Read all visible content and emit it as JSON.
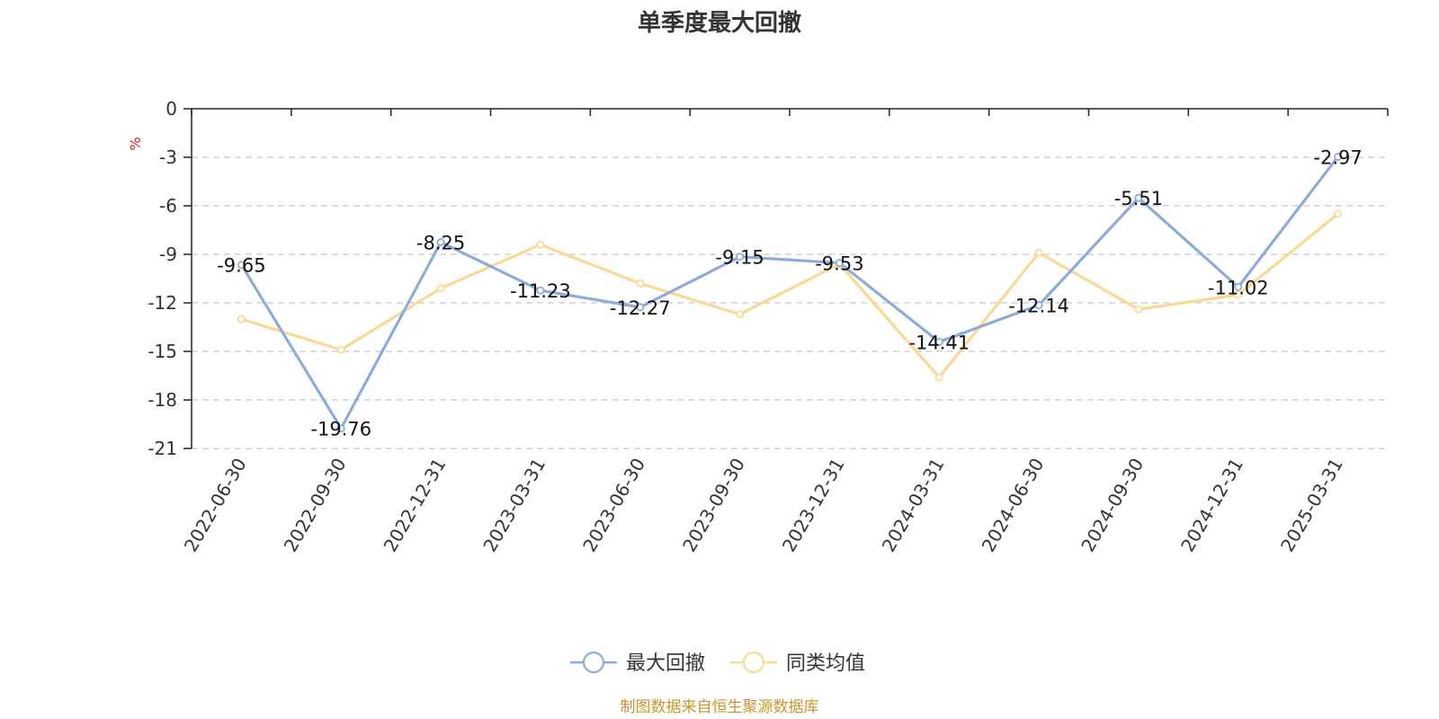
{
  "chart_data": {
    "type": "line",
    "title": "单季度最大回撤",
    "ylabel": "%",
    "categories": [
      "2022-06-30",
      "2022-09-30",
      "2022-12-31",
      "2023-03-31",
      "2023-06-30",
      "2023-09-30",
      "2023-12-31",
      "2024-03-31",
      "2024-06-30",
      "2024-09-30",
      "2024-12-31",
      "2025-03-31"
    ],
    "ylim": [
      -21,
      0
    ],
    "yticks": [
      0,
      -3,
      -6,
      -9,
      -12,
      -15,
      -18,
      -21
    ],
    "ytick_labels": [
      "0",
      "-3",
      "-6",
      "-9",
      "-12",
      "-15",
      "-18",
      "-21"
    ],
    "grid": true,
    "legend_position": "bottom-center",
    "series": [
      {
        "name": "最大回撤",
        "color": "#8eacdb",
        "values": [
          -9.65,
          -19.76,
          -8.25,
          -11.23,
          -12.27,
          -9.15,
          -9.53,
          -14.41,
          -12.14,
          -5.51,
          -11.02,
          -2.97
        ],
        "data_labels": [
          "-9.65",
          "-19.76",
          "-8.25",
          "-11.23",
          "-12.27",
          "-9.15",
          "-9.53",
          "-14.41",
          "-12.14",
          "-5.51",
          "-11.02",
          "-2.97"
        ]
      },
      {
        "name": "同类均值",
        "color": "#fad994",
        "values": [
          -13.0,
          -14.9,
          -11.1,
          -8.4,
          -10.8,
          -12.7,
          -9.6,
          -16.6,
          -8.9,
          -12.4,
          -11.5,
          -6.5
        ]
      }
    ]
  },
  "source_text": "制图数据来自恒生聚源数据库"
}
